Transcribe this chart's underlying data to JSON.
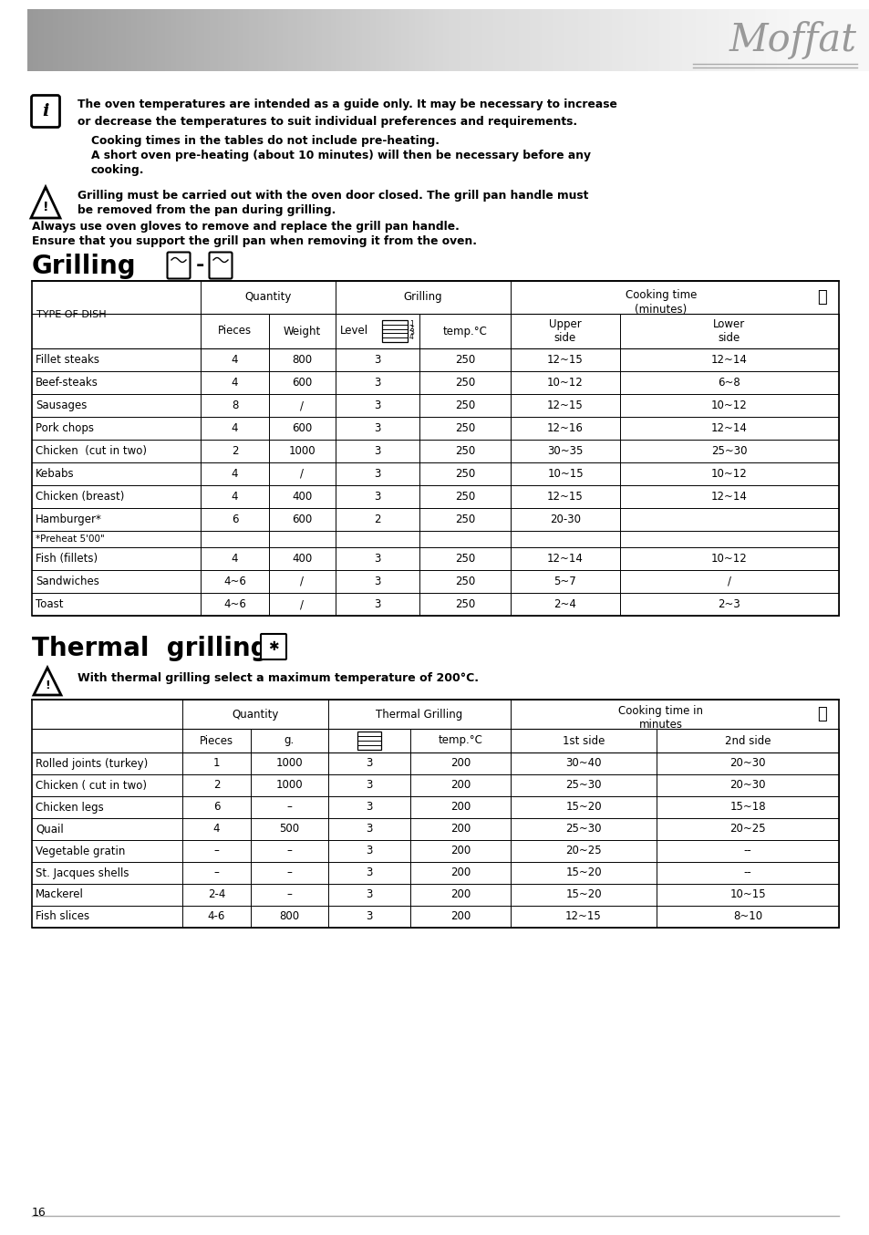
{
  "page_number": "16",
  "info_text_bold": "The oven temperatures are intended as a guide only. It may be necessary to increase\nor decrease the temperatures to suit individual preferences and requirements.",
  "info_text2_line1": "Cooking times in the tables do not include pre-heating.",
  "info_text2_line2": "A short oven pre-heating (about 10 minutes) will then be necessary before any",
  "info_text2_line3": "cooking.",
  "warning_text1": "Grilling must be carried out with the oven door closed. The grill pan handle must",
  "warning_text2": "be removed from the pan during grilling.",
  "warning_text3": "Always use oven gloves to remove and replace the grill pan handle.",
  "warning_text4": "Ensure that you support the grill pan when removing it from the oven.",
  "grilling_rows": [
    [
      "Fillet steaks",
      "4",
      "800",
      "3",
      "250",
      "12~15",
      "12~14"
    ],
    [
      "Beef-steaks",
      "4",
      "600",
      "3",
      "250",
      "10~12",
      "6~8"
    ],
    [
      "Sausages",
      "8",
      "/",
      "3",
      "250",
      "12~15",
      "10~12"
    ],
    [
      "Pork chops",
      "4",
      "600",
      "3",
      "250",
      "12~16",
      "12~14"
    ],
    [
      "Chicken  (cut in two)",
      "2",
      "1000",
      "3",
      "250",
      "30~35",
      "25~30"
    ],
    [
      "Kebabs",
      "4",
      "/",
      "3",
      "250",
      "10~15",
      "10~12"
    ],
    [
      "Chicken (breast)",
      "4",
      "400",
      "3",
      "250",
      "12~15",
      "12~14"
    ],
    [
      "Hamburger*",
      "6",
      "600",
      "2",
      "250",
      "20-30",
      ""
    ],
    [
      "*Preheat 5'00\"",
      "",
      "",
      "",
      "",
      "",
      ""
    ],
    [
      "Fish (fillets)",
      "4",
      "400",
      "3",
      "250",
      "12~14",
      "10~12"
    ],
    [
      "Sandwiches",
      "4~6",
      "/",
      "3",
      "250",
      "5~7",
      "/"
    ],
    [
      "Toast",
      "4~6",
      "/",
      "3",
      "250",
      "2~4",
      "2~3"
    ]
  ],
  "thermal_warning": "With thermal grilling select a maximum temperature of 200°C.",
  "thermal_rows": [
    [
      "Rolled joints (turkey)",
      "1",
      "1000",
      "3",
      "200",
      "30~40",
      "20~30"
    ],
    [
      "Chicken ( cut in two)",
      "2",
      "1000",
      "3",
      "200",
      "25~30",
      "20~30"
    ],
    [
      "Chicken legs",
      "6",
      "–",
      "3",
      "200",
      "15~20",
      "15~18"
    ],
    [
      "Quail",
      "4",
      "500",
      "3",
      "200",
      "25~30",
      "20~25"
    ],
    [
      "Vegetable gratin",
      "–",
      "–",
      "3",
      "200",
      "20~25",
      "--"
    ],
    [
      "St. Jacques shells",
      "–",
      "–",
      "3",
      "200",
      "15~20",
      "--"
    ],
    [
      "Mackerel",
      "2-4",
      "–",
      "3",
      "200",
      "15~20",
      "10~15"
    ],
    [
      "Fish slices",
      "4-6",
      "800",
      "3",
      "200",
      "12~15",
      "8~10"
    ]
  ]
}
